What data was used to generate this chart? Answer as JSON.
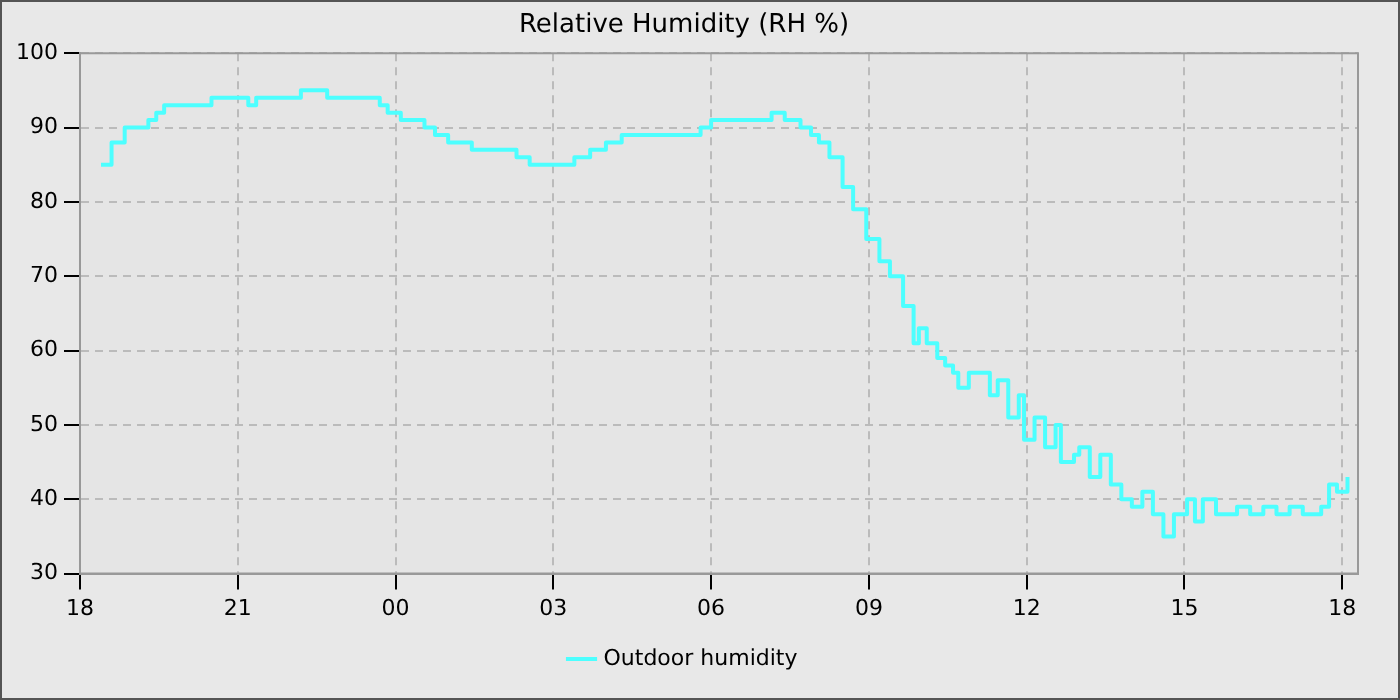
{
  "chart_data": {
    "type": "step",
    "title": "Relative Humidity (RH %)",
    "x": [
      "2000-01-01T18:24",
      "2000-01-01T18:36",
      "2000-01-01T18:51",
      "2000-01-01T19:18",
      "2000-01-01T19:27",
      "2000-01-01T19:36",
      "2000-01-01T20:18",
      "2000-01-01T20:30",
      "2000-01-01T21:12",
      "2000-01-01T21:21",
      "2000-01-01T22:06",
      "2000-01-01T22:12",
      "2000-01-01T22:42",
      "2000-01-01T23:39",
      "2000-01-01T23:42",
      "2000-01-01T23:51",
      "2000-01-02T00:06",
      "2000-01-02T00:33",
      "2000-01-02T00:45",
      "2000-01-02T01:00",
      "2000-01-02T01:27",
      "2000-01-02T02:18",
      "2000-01-02T02:33",
      "2000-01-02T03:24",
      "2000-01-02T03:42",
      "2000-01-02T04:00",
      "2000-01-02T04:18",
      "2000-01-02T05:48",
      "2000-01-02T06:00",
      "2000-01-02T07:09",
      "2000-01-02T07:24",
      "2000-01-02T07:42",
      "2000-01-02T07:54",
      "2000-01-02T08:03",
      "2000-01-02T08:15",
      "2000-01-02T08:30",
      "2000-01-02T08:42",
      "2000-01-02T08:57",
      "2000-01-02T09:12",
      "2000-01-02T09:24",
      "2000-01-02T09:39",
      "2000-01-02T09:51",
      "2000-01-02T09:57",
      "2000-01-02T10:06",
      "2000-01-02T10:18",
      "2000-01-02T10:27",
      "2000-01-02T10:36",
      "2000-01-02T10:42",
      "2000-01-02T10:54",
      "2000-01-02T11:06",
      "2000-01-02T11:18",
      "2000-01-02T11:27",
      "2000-01-02T11:39",
      "2000-01-02T11:51",
      "2000-01-02T11:57",
      "2000-01-02T12:09",
      "2000-01-02T12:21",
      "2000-01-02T12:33",
      "2000-01-02T12:39",
      "2000-01-02T12:54",
      "2000-01-02T13:00",
      "2000-01-02T13:12",
      "2000-01-02T13:24",
      "2000-01-02T13:36",
      "2000-01-02T13:48",
      "2000-01-02T14:00",
      "2000-01-02T14:12",
      "2000-01-02T14:24",
      "2000-01-02T14:36",
      "2000-01-02T14:48",
      "2000-01-02T15:03",
      "2000-01-02T15:12",
      "2000-01-02T15:21",
      "2000-01-02T15:36",
      "2000-01-02T16:00",
      "2000-01-02T16:15",
      "2000-01-02T16:30",
      "2000-01-02T16:45",
      "2000-01-02T17:00",
      "2000-01-02T17:15",
      "2000-01-02T17:36",
      "2000-01-02T17:45",
      "2000-01-02T17:54",
      "2000-01-02T18:06"
    ],
    "series": [
      {
        "name": "Outdoor humidity",
        "color": "#4dffff",
        "values": [
          85,
          88,
          90,
          91,
          92,
          93,
          93,
          94,
          93,
          94,
          94,
          95,
          94,
          94,
          93,
          92,
          91,
          90,
          89,
          88,
          87,
          86,
          85,
          86,
          87,
          88,
          89,
          90,
          91,
          92,
          91,
          90,
          89,
          88,
          86,
          82,
          79,
          75,
          72,
          70,
          66,
          61,
          63,
          61,
          59,
          58,
          57,
          55,
          57,
          57,
          54,
          56,
          51,
          54,
          48,
          51,
          47,
          50,
          45,
          46,
          47,
          43,
          46,
          42,
          40,
          39,
          41,
          38,
          35,
          38,
          40,
          37,
          40,
          38,
          39,
          38,
          39,
          38,
          39,
          38,
          39,
          42,
          41,
          43
        ]
      }
    ],
    "xlim": [
      "2000-01-01T18:00",
      "2000-01-02T18:18"
    ],
    "xticks": [
      {
        "value": "2000-01-01T18:00",
        "label": "18"
      },
      {
        "value": "2000-01-01T21:00",
        "label": "21"
      },
      {
        "value": "2000-01-02T00:00",
        "label": "00"
      },
      {
        "value": "2000-01-02T03:00",
        "label": "03"
      },
      {
        "value": "2000-01-02T06:00",
        "label": "06"
      },
      {
        "value": "2000-01-02T09:00",
        "label": "09"
      },
      {
        "value": "2000-01-02T12:00",
        "label": "12"
      },
      {
        "value": "2000-01-02T15:00",
        "label": "15"
      },
      {
        "value": "2000-01-02T18:00",
        "label": "18"
      }
    ],
    "ylim": [
      30,
      100
    ],
    "yticks": [
      30,
      40,
      50,
      60,
      70,
      80,
      90,
      100
    ],
    "grid": true,
    "legend": "bottom",
    "line_style": "solid",
    "marker": "none"
  }
}
